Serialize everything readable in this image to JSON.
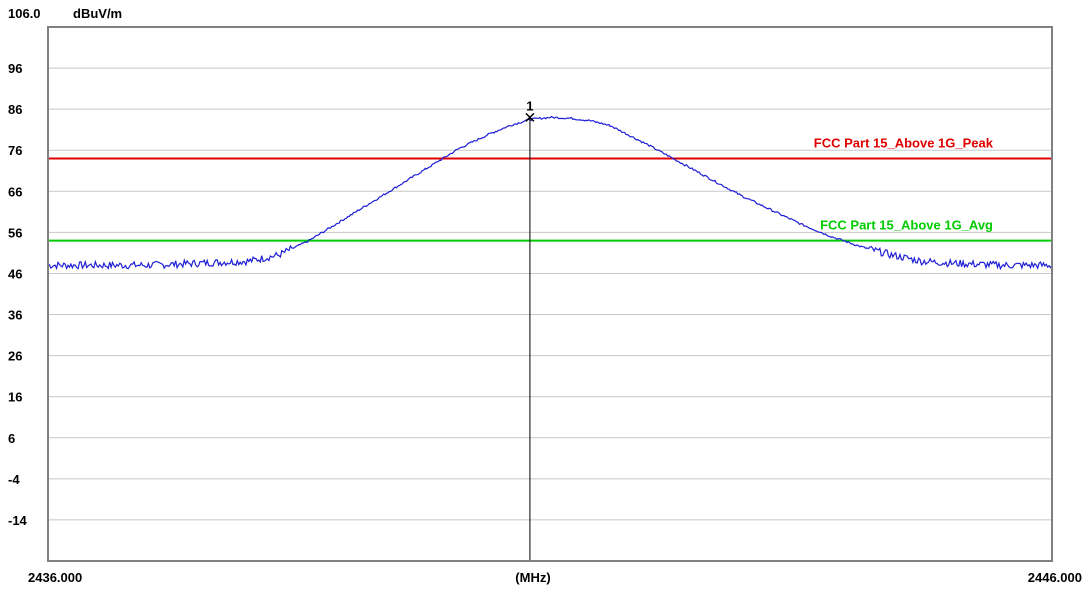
{
  "chart_data": {
    "type": "line",
    "y_top_label": "106.0",
    "y_unit": "dBuV/m",
    "xlabel": "(MHz)",
    "x_start_label": "2436.000",
    "x_end_label": "2446.000",
    "xlim": [
      2436,
      2446
    ],
    "ylim": [
      -24,
      106
    ],
    "y_ticks": [
      96,
      86,
      76,
      66,
      56,
      46,
      36,
      26,
      16,
      6,
      -4,
      -14
    ],
    "grid": true,
    "limit_lines": [
      {
        "label": "FCC Part 15_Above 1G_Peak",
        "value": 74,
        "color": "#e00000"
      },
      {
        "label": "FCC Part 15_Above 1G_Avg",
        "value": 54,
        "color": "#00cc00"
      }
    ],
    "marker": {
      "label": "1",
      "x": 2440.8,
      "y": 84
    },
    "series": [
      {
        "color": "#1f1fd6",
        "x": [
          2436.0,
          2436.5,
          2437.0,
          2437.5,
          2438.0,
          2438.3,
          2438.6,
          2438.9,
          2439.2,
          2439.5,
          2439.8,
          2440.1,
          2440.4,
          2440.6,
          2440.8,
          2441.0,
          2441.2,
          2441.4,
          2441.6,
          2441.8,
          2442.0,
          2442.3,
          2442.6,
          2442.9,
          2443.2,
          2443.5,
          2443.8,
          2444.1,
          2444.4,
          2444.7,
          2445.0,
          2445.5,
          2446.0
        ],
        "y": [
          48,
          48,
          48,
          48.5,
          49,
          50.5,
          54,
          58.5,
          63,
          67.5,
          72,
          76.5,
          80,
          82,
          83.5,
          84,
          83.8,
          83.2,
          82,
          79.5,
          77,
          73,
          69,
          65,
          61.5,
          58,
          55,
          52.5,
          50.5,
          49,
          48.5,
          48,
          48
        ]
      }
    ]
  }
}
